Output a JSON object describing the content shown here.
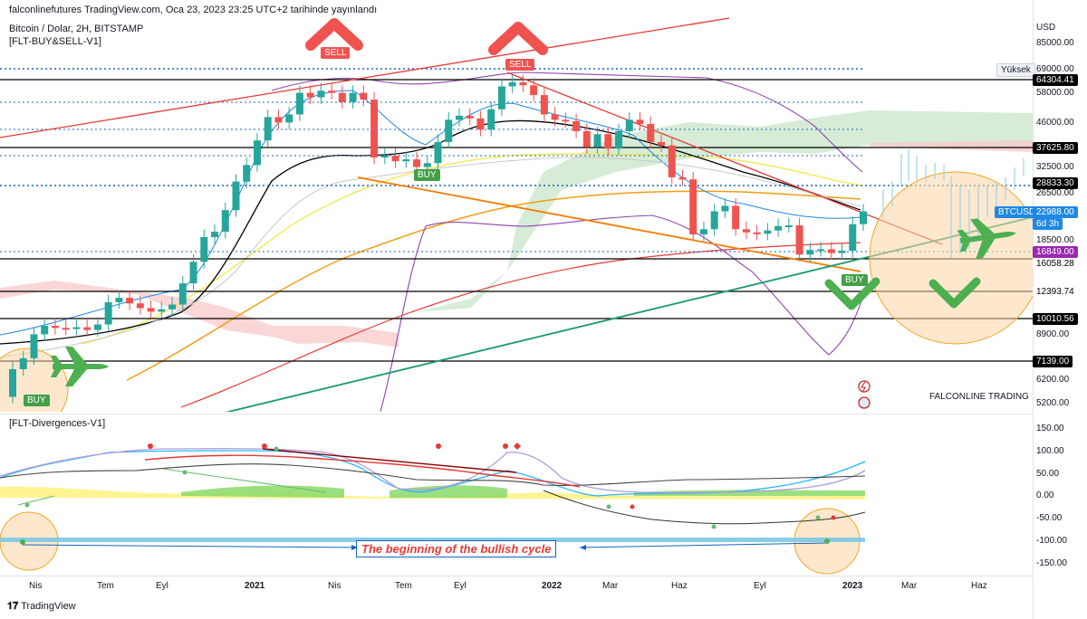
{
  "header": {
    "publish_line": "falconlinefutures TradingView.com, Oca 23, 2023 23:25 UTC+2 tarihinde yayınlandı",
    "symbol_line": "Bitcoin / Dolar, 2H, BITSTAMP",
    "indicator_line": "[FLT-BUY&SELL-V1]"
  },
  "price_axis": {
    "currency": "USD",
    "ticks": [
      "85000.00",
      "58000.00",
      "46000.00",
      "32500.00",
      "26500.00",
      "18500.00",
      "8900.00",
      "6200.00",
      "5200.00"
    ],
    "high_label": "Yüksek",
    "high_value": "69000.00",
    "levels": [
      {
        "value": "64304.41",
        "color": "#000000"
      },
      {
        "value": "37625.80",
        "color": "#000000"
      },
      {
        "value": "28833.30",
        "color": "#000000"
      },
      {
        "value": "16849.00",
        "color": "#9c27b0"
      },
      {
        "value": "16058.28",
        "color": "#000000"
      },
      {
        "value": "12393.74",
        "color": "#000000"
      },
      {
        "value": "10010.56",
        "color": "#000000"
      },
      {
        "value": "7139.00",
        "color": "#000000"
      }
    ],
    "last_symbol": "BTCUSD",
    "last_price": "22988.00",
    "countdown": "6d 3h"
  },
  "signals": [
    {
      "label": "SELL"
    },
    {
      "label": "SELL"
    },
    {
      "label": "BUY"
    },
    {
      "label": "BUY"
    },
    {
      "label": "BUY"
    }
  ],
  "watermark": "FALCONLINE TRADING",
  "osc": {
    "title": "[FLT-Divergences-V1]",
    "ticks": [
      "150.00",
      "100.00",
      "50.00",
      "0.00",
      "-50.00",
      "-100.00",
      "-150.00"
    ],
    "annotation": "The beginning of the bullish cycle"
  },
  "time_axis": [
    "Nis",
    "Tem",
    "Eyl",
    "2021",
    "Nis",
    "Tem",
    "Eyl",
    "2022",
    "Mar",
    "Haz",
    "Eyl",
    "2023",
    "Mar",
    "Haz"
  ],
  "footer": {
    "brand": "TradingView"
  },
  "chart_data": {
    "type": "candlestick",
    "title": "Bitcoin / Dolar, 2H, BITSTAMP",
    "price_scale": "log",
    "horizontal_levels": [
      69000,
      64304.41,
      37625.8,
      28833.3,
      16849,
      16058.28,
      12393.74,
      10010.56,
      7139
    ],
    "candles": [
      {
        "o": 5400,
        "c": 6700
      },
      {
        "o": 6700,
        "c": 7300
      },
      {
        "o": 7300,
        "c": 8800
      },
      {
        "o": 8800,
        "c": 9400
      },
      {
        "o": 9400,
        "c": 9250
      },
      {
        "o": 9250,
        "c": 9200
      },
      {
        "o": 9200,
        "c": 9300
      },
      {
        "o": 9300,
        "c": 9100
      },
      {
        "o": 9100,
        "c": 9500
      },
      {
        "o": 9500,
        "c": 11300
      },
      {
        "o": 11300,
        "c": 11700
      },
      {
        "o": 11700,
        "c": 11200
      },
      {
        "o": 11200,
        "c": 10800
      },
      {
        "o": 10800,
        "c": 10500
      },
      {
        "o": 10500,
        "c": 10700
      },
      {
        "o": 10700,
        "c": 11100
      },
      {
        "o": 11100,
        "c": 13100
      },
      {
        "o": 13100,
        "c": 15500
      },
      {
        "o": 15500,
        "c": 18800
      },
      {
        "o": 18800,
        "c": 19600
      },
      {
        "o": 19600,
        "c": 23200
      },
      {
        "o": 23200,
        "c": 29000
      },
      {
        "o": 29000,
        "c": 33000
      },
      {
        "o": 33000,
        "c": 40000
      },
      {
        "o": 40000,
        "c": 48000
      },
      {
        "o": 48000,
        "c": 46000
      },
      {
        "o": 46000,
        "c": 49000
      },
      {
        "o": 49000,
        "c": 58000
      },
      {
        "o": 58000,
        "c": 56000
      },
      {
        "o": 56000,
        "c": 59000
      },
      {
        "o": 59000,
        "c": 58000
      },
      {
        "o": 58000,
        "c": 54000
      },
      {
        "o": 54000,
        "c": 58000
      },
      {
        "o": 58000,
        "c": 55000
      },
      {
        "o": 55000,
        "c": 35000
      },
      {
        "o": 35000,
        "c": 35500
      },
      {
        "o": 35500,
        "c": 34000
      },
      {
        "o": 34000,
        "c": 34500
      },
      {
        "o": 34500,
        "c": 32500
      },
      {
        "o": 32500,
        "c": 33500
      },
      {
        "o": 33500,
        "c": 39500
      },
      {
        "o": 39500,
        "c": 47000
      },
      {
        "o": 47000,
        "c": 48500
      },
      {
        "o": 48500,
        "c": 47500
      },
      {
        "o": 47500,
        "c": 43500
      },
      {
        "o": 43500,
        "c": 51000
      },
      {
        "o": 51000,
        "c": 61000
      },
      {
        "o": 61000,
        "c": 63000
      },
      {
        "o": 63000,
        "c": 61500
      },
      {
        "o": 61500,
        "c": 57000
      },
      {
        "o": 57000,
        "c": 49000
      },
      {
        "o": 49000,
        "c": 47000
      },
      {
        "o": 47000,
        "c": 46500
      },
      {
        "o": 46500,
        "c": 43000
      },
      {
        "o": 43000,
        "c": 38000
      },
      {
        "o": 38000,
        "c": 42000
      },
      {
        "o": 42000,
        "c": 37500
      },
      {
        "o": 37500,
        "c": 43000
      },
      {
        "o": 43000,
        "c": 47000
      },
      {
        "o": 47000,
        "c": 45500
      },
      {
        "o": 45500,
        "c": 39500
      },
      {
        "o": 39500,
        "c": 38500
      },
      {
        "o": 38500,
        "c": 30000
      },
      {
        "o": 30000,
        "c": 29500
      },
      {
        "o": 29500,
        "c": 19200
      },
      {
        "o": 19200,
        "c": 20000
      },
      {
        "o": 20000,
        "c": 23000
      },
      {
        "o": 23000,
        "c": 24000
      },
      {
        "o": 24000,
        "c": 20000
      },
      {
        "o": 20000,
        "c": 19500
      },
      {
        "o": 19500,
        "c": 19300
      },
      {
        "o": 19300,
        "c": 19800
      },
      {
        "o": 19800,
        "c": 20500
      },
      {
        "o": 20500,
        "c": 20600
      },
      {
        "o": 20600,
        "c": 16400
      },
      {
        "o": 16400,
        "c": 17000
      },
      {
        "o": 17000,
        "c": 17100
      },
      {
        "o": 17100,
        "c": 16600
      },
      {
        "o": 16600,
        "c": 16900
      },
      {
        "o": 16900,
        "c": 20800
      },
      {
        "o": 20800,
        "c": 22988
      }
    ],
    "projection_x_label_range": [
      "2023",
      "Haz"
    ]
  }
}
